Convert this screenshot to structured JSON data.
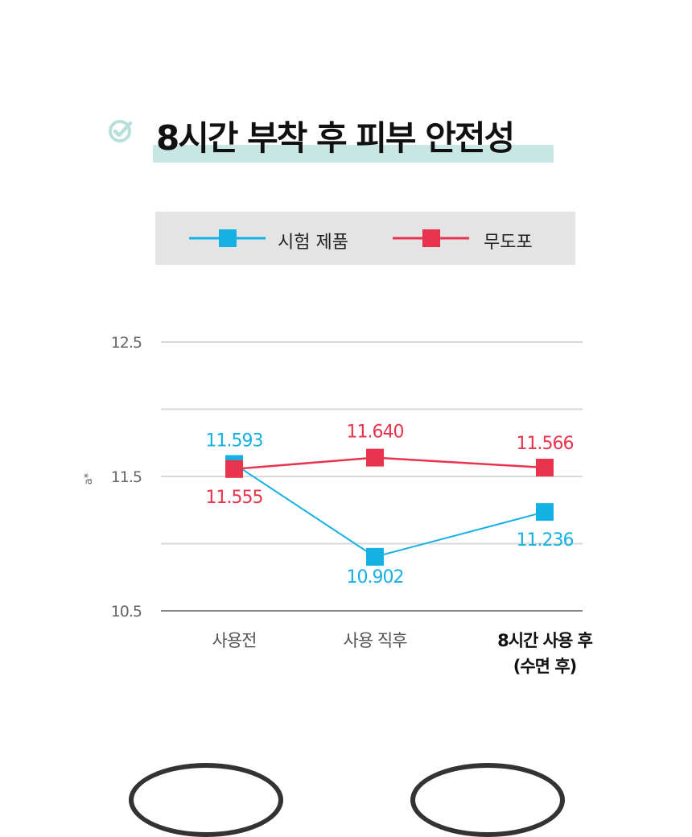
{
  "header": {
    "title": "8시간 부착 후 피부 안전성",
    "check_icon": "check-circle-icon",
    "accent_color": "#c8e6e4"
  },
  "chart_data": {
    "type": "line",
    "title": "8시간 부착 후 피부 안전성",
    "categories": [
      "사용전",
      "사용 직후",
      "8시간 사용 후\n(수면 후)"
    ],
    "series": [
      {
        "name": "시험 제품",
        "color": "#16b1e3",
        "values": [
          11.593,
          10.902,
          11.236
        ],
        "labels": [
          "11.593",
          "10.902",
          "11.236"
        ]
      },
      {
        "name": "무도포",
        "color": "#e8344c",
        "values": [
          11.555,
          11.64,
          11.566
        ],
        "labels": [
          "11.555",
          "11.640",
          "11.566"
        ]
      }
    ],
    "y_ticks": [
      12.5,
      11.5,
      10.5
    ],
    "y_tick_labels": [
      "12.5",
      "11.5",
      "10.5"
    ],
    "ylabel": "a*",
    "ylim": [
      10.5,
      12.5
    ],
    "grid": true,
    "legend": "top"
  }
}
